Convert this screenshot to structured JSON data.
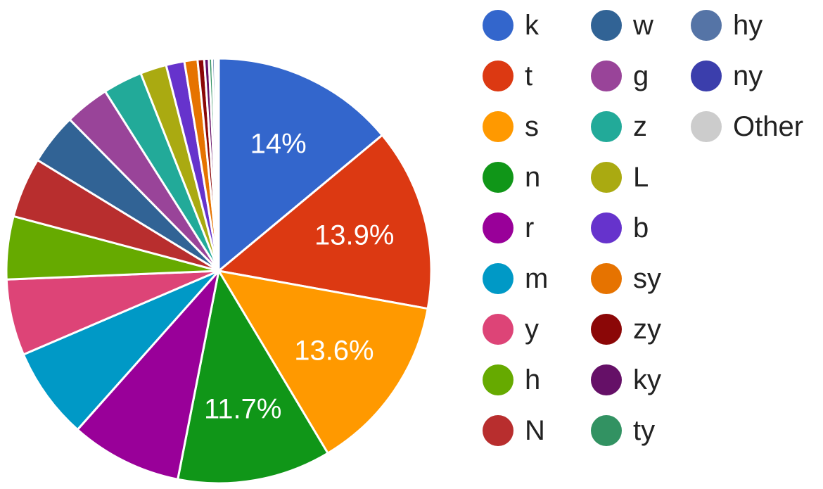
{
  "chart_data": {
    "type": "pie",
    "title": "",
    "legend_position": "right",
    "slices": [
      {
        "label": "k",
        "value": 14.0,
        "color": "#3366cc",
        "data_label": "14%"
      },
      {
        "label": "t",
        "value": 13.9,
        "color": "#dc3912",
        "data_label": "13.9%"
      },
      {
        "label": "s",
        "value": 13.6,
        "color": "#ff9900",
        "data_label": "13.6%"
      },
      {
        "label": "n",
        "value": 11.7,
        "color": "#109618",
        "data_label": "11.7%"
      },
      {
        "label": "r",
        "value": 8.5,
        "color": "#990099",
        "data_label": ""
      },
      {
        "label": "m",
        "value": 7.0,
        "color": "#0099c6",
        "data_label": ""
      },
      {
        "label": "y",
        "value": 5.8,
        "color": "#dd4477",
        "data_label": ""
      },
      {
        "label": "h",
        "value": 4.8,
        "color": "#66aa00",
        "data_label": ""
      },
      {
        "label": "N",
        "value": 4.6,
        "color": "#b82e2e",
        "data_label": ""
      },
      {
        "label": "w",
        "value": 3.9,
        "color": "#316395",
        "data_label": ""
      },
      {
        "label": "g",
        "value": 3.4,
        "color": "#994499",
        "data_label": ""
      },
      {
        "label": "z",
        "value": 3.0,
        "color": "#22aa99",
        "data_label": ""
      },
      {
        "label": "L",
        "value": 2.0,
        "color": "#aaaa11",
        "data_label": ""
      },
      {
        "label": "b",
        "value": 1.4,
        "color": "#6633cc",
        "data_label": ""
      },
      {
        "label": "sy",
        "value": 1.0,
        "color": "#e67300",
        "data_label": ""
      },
      {
        "label": "zy",
        "value": 0.5,
        "color": "#8b0707",
        "data_label": ""
      },
      {
        "label": "ky",
        "value": 0.35,
        "color": "#651067",
        "data_label": ""
      },
      {
        "label": "ty",
        "value": 0.25,
        "color": "#329262",
        "data_label": ""
      },
      {
        "label": "hy",
        "value": 0.2,
        "color": "#5574a6",
        "data_label": ""
      },
      {
        "label": "ny",
        "value": 0.15,
        "color": "#3b3eac",
        "data_label": ""
      },
      {
        "label": "Other",
        "value": 0.15,
        "color": "#cccccc",
        "data_label": ""
      }
    ]
  }
}
